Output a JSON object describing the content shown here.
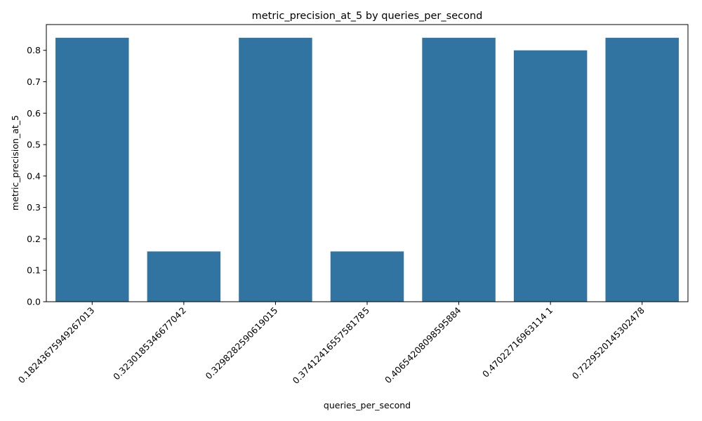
{
  "chart_data": {
    "type": "bar",
    "title": "metric_precision_at_5 by queries_per_second",
    "xlabel": "queries_per_second",
    "ylabel": "metric_precision_at_5",
    "categories": [
      "0.18243675949267013",
      "0.323018534667704 2",
      "0.3298282590619015",
      "0.3741241655758178 5",
      "0.40654208098595884",
      "0.47022716963114 1",
      "0.7229520145302478"
    ],
    "values": [
      0.84,
      0.16,
      0.84,
      0.16,
      0.84,
      0.8,
      0.84
    ],
    "ylim": [
      0,
      0.882
    ],
    "yticks": [
      0.0,
      0.1,
      0.2,
      0.3,
      0.4,
      0.5,
      0.6,
      0.7,
      0.8
    ],
    "ytick_labels": [
      "0.0",
      "0.1",
      "0.2",
      "0.3",
      "0.4",
      "0.5",
      "0.6",
      "0.7",
      "0.8"
    ],
    "bar_color": "#3274a1",
    "grid": false,
    "legend": "none"
  }
}
